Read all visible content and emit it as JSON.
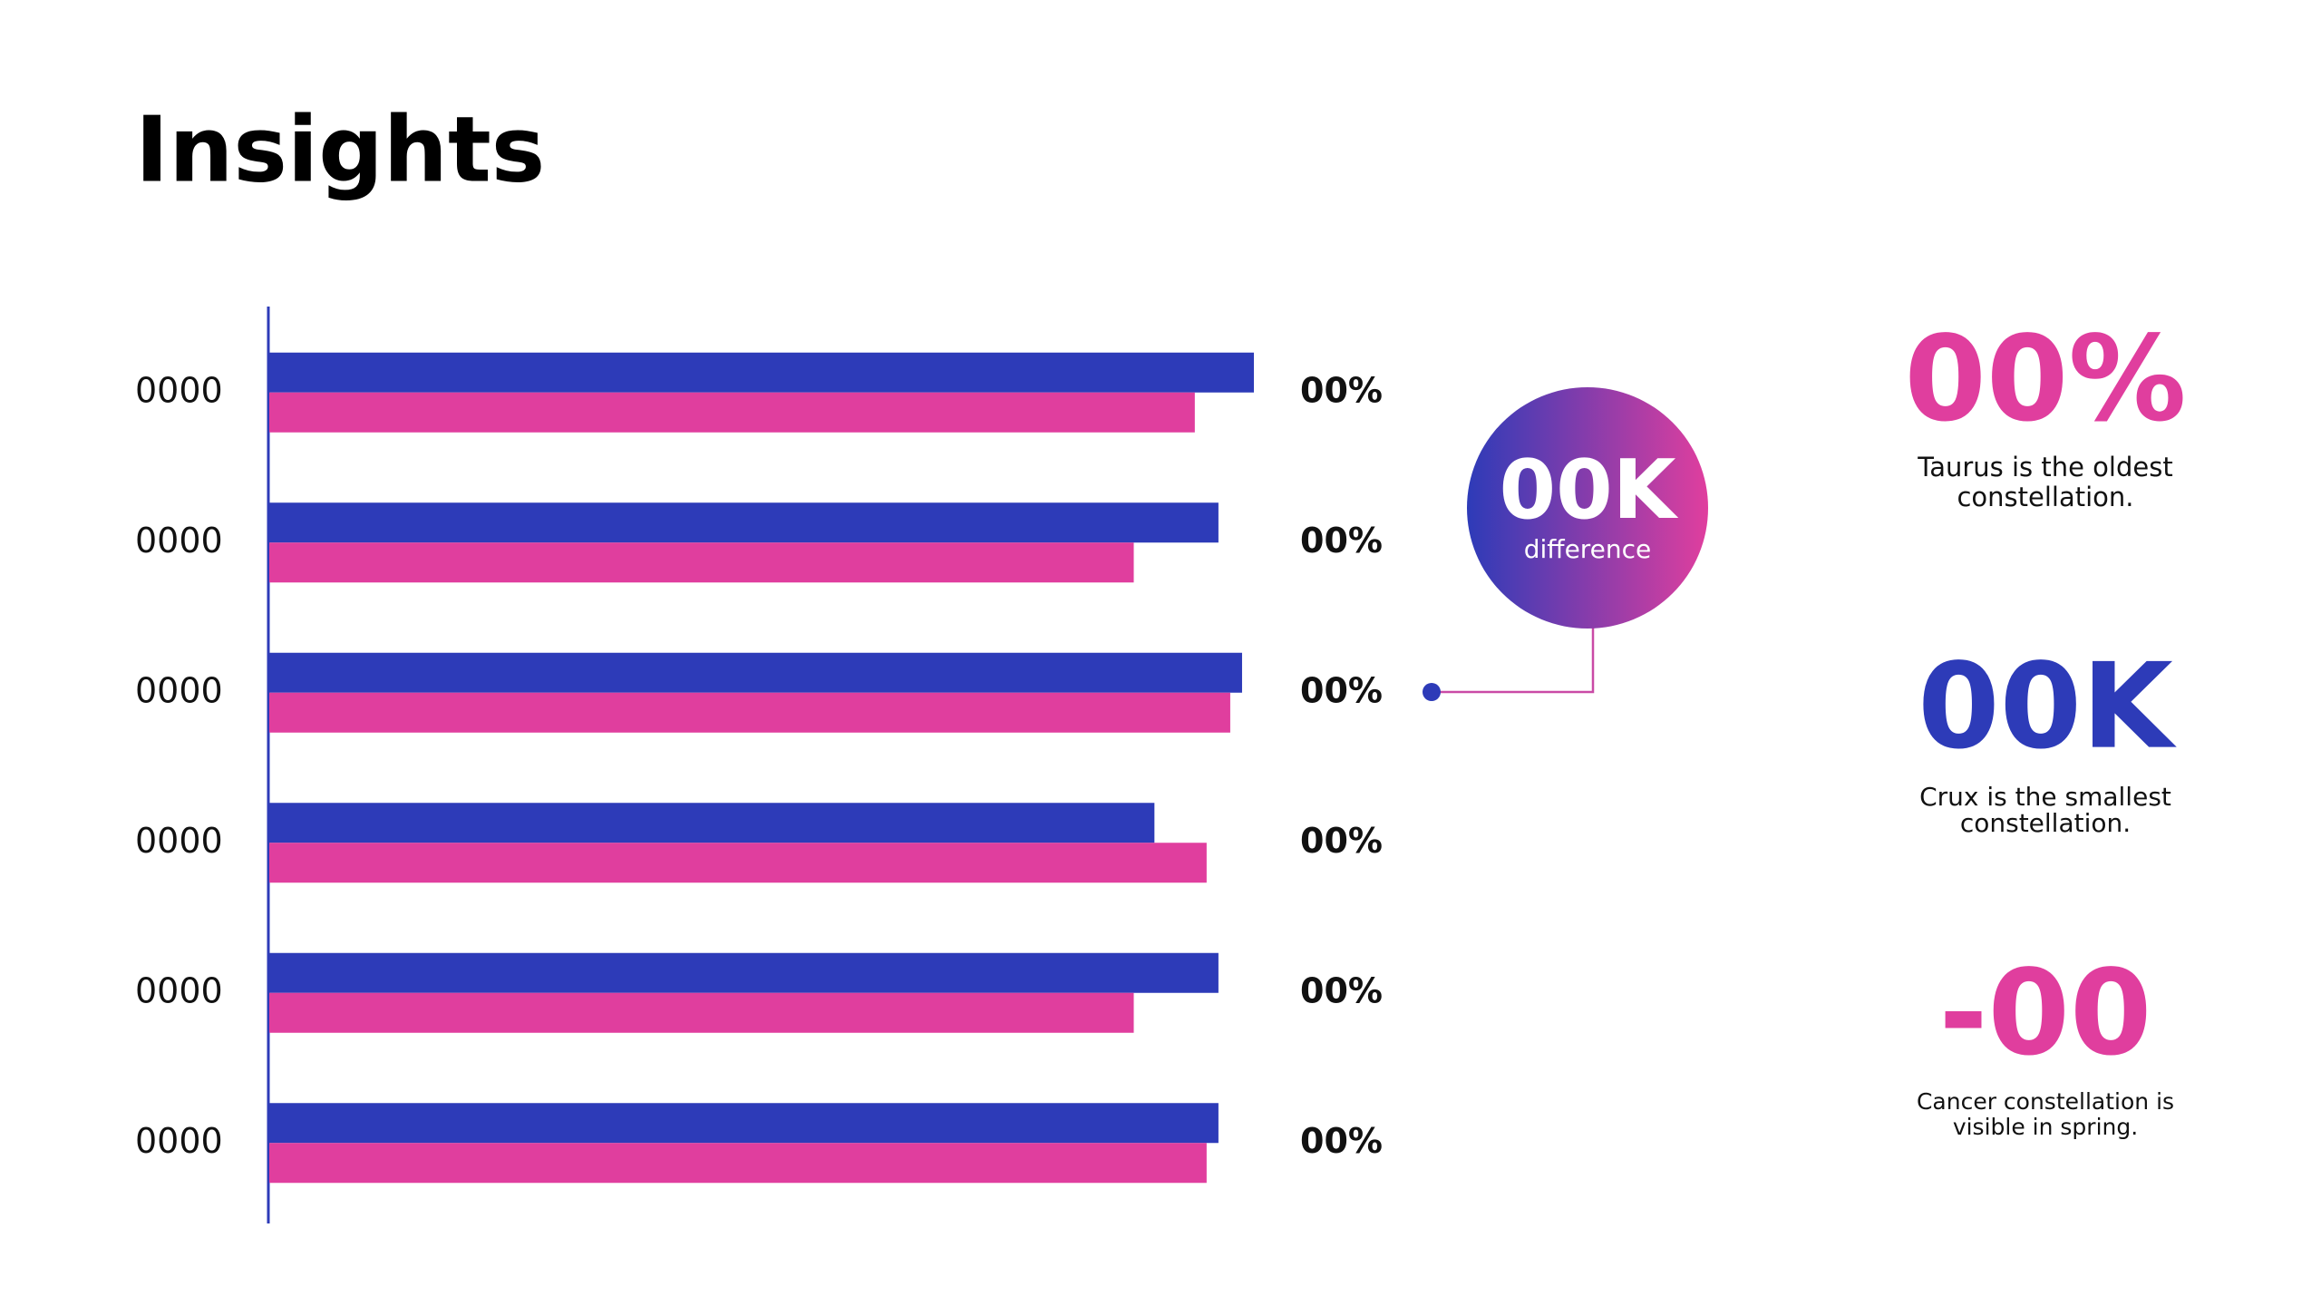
{
  "title": "Insights",
  "chart_data": {
    "type": "bar",
    "orientation": "horizontal",
    "categories": [
      "0000",
      "0000",
      "0000",
      "0000",
      "0000",
      "0000"
    ],
    "series": [
      {
        "color": "#2d3bb8",
        "values": [
          100,
          96.4,
          98.8,
          89.9,
          96.4,
          96.4
        ]
      },
      {
        "color": "#e03e9e",
        "values": [
          94.0,
          87.8,
          97.6,
          95.2,
          87.8,
          95.2
        ]
      }
    ],
    "annotations": [
      "00%",
      "00%",
      "00%",
      "00%",
      "00%",
      "00%"
    ],
    "xlim": [
      0,
      100
    ]
  },
  "callout": {
    "value": "00K",
    "label": "difference"
  },
  "stats": [
    {
      "value": "00%",
      "caption": [
        "Taurus is the oldest",
        "constellation."
      ]
    },
    {
      "value": "00K",
      "caption": [
        "Crux is the smallest",
        "constellation."
      ]
    },
    {
      "value": "-00",
      "caption": [
        "Cancer constellation is",
        "visible in spring."
      ]
    }
  ]
}
